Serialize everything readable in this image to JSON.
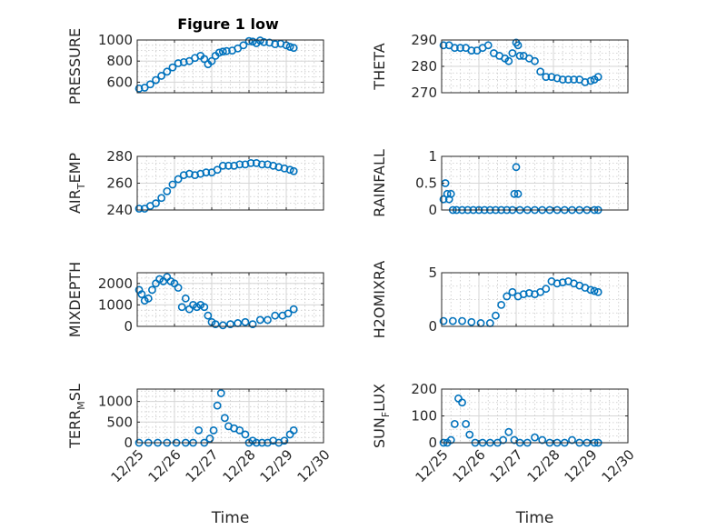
{
  "figure": {
    "title": "Figure 1 low"
  },
  "chart_data": [
    {
      "id": "pressure",
      "type": "scatter",
      "title": "Figure 1 low",
      "ylabel": "PRESSURE",
      "ylim": [
        500,
        1000
      ],
      "yticks": [
        600,
        800,
        1000
      ],
      "xlim": [
        0,
        5
      ],
      "xticklabels": [],
      "xlabel": "",
      "x": [
        0.05,
        0.2,
        0.35,
        0.5,
        0.65,
        0.8,
        0.95,
        1.1,
        1.25,
        1.4,
        1.55,
        1.7,
        1.8,
        1.9,
        2.0,
        2.1,
        2.2,
        2.3,
        2.4,
        2.55,
        2.7,
        2.85,
        3.0,
        3.1,
        3.2,
        3.3,
        3.4,
        3.55,
        3.7,
        3.85,
        4.0,
        4.1,
        4.2
      ],
      "y": [
        540,
        548,
        580,
        620,
        660,
        700,
        740,
        780,
        790,
        800,
        830,
        850,
        820,
        770,
        800,
        850,
        880,
        890,
        895,
        900,
        920,
        950,
        990,
        985,
        970,
        995,
        980,
        975,
        960,
        965,
        950,
        935,
        925
      ]
    },
    {
      "id": "theta",
      "type": "scatter",
      "ylabel": "THETA",
      "ylim": [
        270,
        290
      ],
      "yticks": [
        270,
        280,
        290
      ],
      "xlim": [
        0,
        5
      ],
      "xticklabels": [],
      "xlabel": "",
      "x": [
        0.05,
        0.2,
        0.35,
        0.5,
        0.65,
        0.8,
        0.95,
        1.1,
        1.25,
        1.4,
        1.55,
        1.7,
        1.8,
        1.9,
        2.0,
        2.05,
        2.1,
        2.2,
        2.35,
        2.5,
        2.65,
        2.8,
        2.95,
        3.1,
        3.25,
        3.4,
        3.55,
        3.7,
        3.85,
        4.0,
        4.1,
        4.2
      ],
      "y": [
        288,
        288,
        287,
        287,
        287,
        286,
        286,
        287,
        288,
        285,
        284,
        283,
        282,
        285,
        289,
        288,
        284,
        284,
        283,
        282,
        278,
        276,
        276,
        275.5,
        275,
        275,
        275,
        275,
        274,
        274.5,
        275,
        276
      ]
    },
    {
      "id": "air_temp",
      "type": "scatter",
      "ylabel": "AIR_TEMP",
      "ylim": [
        240,
        280
      ],
      "yticks": [
        240,
        260,
        280
      ],
      "xlim": [
        0,
        5
      ],
      "xticklabels": [],
      "xlabel": "",
      "x": [
        0.05,
        0.2,
        0.35,
        0.5,
        0.65,
        0.8,
        0.95,
        1.1,
        1.25,
        1.4,
        1.55,
        1.7,
        1.85,
        2.0,
        2.15,
        2.3,
        2.45,
        2.6,
        2.75,
        2.9,
        3.05,
        3.2,
        3.35,
        3.5,
        3.65,
        3.8,
        3.95,
        4.1,
        4.2
      ],
      "y": [
        241,
        241,
        243,
        245,
        249,
        254,
        259,
        263,
        266,
        267,
        266,
        267,
        268,
        268,
        270,
        273,
        273,
        273,
        274,
        274,
        275,
        275,
        274,
        274,
        273,
        272,
        271,
        270,
        269
      ]
    },
    {
      "id": "rainfall",
      "type": "scatter",
      "ylabel": "RAINFALL",
      "ylim": [
        0,
        1
      ],
      "yticks": [
        0,
        0.5,
        1
      ],
      "xlim": [
        0,
        5
      ],
      "xticklabels": [],
      "xlabel": "",
      "x": [
        0.05,
        0.1,
        0.15,
        0.2,
        0.25,
        0.3,
        0.4,
        0.55,
        0.7,
        0.85,
        1.0,
        1.15,
        1.3,
        1.45,
        1.6,
        1.75,
        1.9,
        1.95,
        2.0,
        2.05,
        2.1,
        2.3,
        2.5,
        2.7,
        2.9,
        3.1,
        3.3,
        3.5,
        3.7,
        3.9,
        4.1,
        4.2
      ],
      "y": [
        0.2,
        0.5,
        0.3,
        0.2,
        0.3,
        0,
        0,
        0,
        0,
        0,
        0,
        0,
        0,
        0,
        0,
        0,
        0,
        0.3,
        0.8,
        0.3,
        0,
        0,
        0,
        0,
        0,
        0,
        0,
        0,
        0,
        0,
        0,
        0
      ]
    },
    {
      "id": "mixdepth",
      "type": "scatter",
      "ylabel": "MIXDEPTH",
      "ylim": [
        0,
        2500
      ],
      "yticks": [
        0,
        1000,
        2000
      ],
      "xlim": [
        0,
        5
      ],
      "xticklabels": [],
      "xlabel": "",
      "x": [
        0.05,
        0.12,
        0.2,
        0.3,
        0.4,
        0.5,
        0.6,
        0.7,
        0.8,
        0.9,
        1.0,
        1.1,
        1.2,
        1.3,
        1.4,
        1.5,
        1.6,
        1.7,
        1.8,
        1.9,
        2.0,
        2.1,
        2.3,
        2.5,
        2.7,
        2.9,
        3.1,
        3.3,
        3.5,
        3.7,
        3.9,
        4.05,
        4.2
      ],
      "y": [
        1700,
        1500,
        1200,
        1300,
        1700,
        2000,
        2200,
        2100,
        2300,
        2100,
        2000,
        1800,
        900,
        1300,
        800,
        1000,
        900,
        1000,
        900,
        500,
        200,
        100,
        50,
        100,
        150,
        200,
        100,
        300,
        300,
        500,
        500,
        600,
        800
      ]
    },
    {
      "id": "h2omixra",
      "type": "scatter",
      "ylabel": "H2OMIXRA",
      "ylim": [
        0,
        5
      ],
      "yticks": [
        0,
        5
      ],
      "xlim": [
        0,
        5
      ],
      "xticklabels": [],
      "xlabel": "",
      "x": [
        0.05,
        0.3,
        0.55,
        0.8,
        1.05,
        1.3,
        1.45,
        1.6,
        1.75,
        1.9,
        2.05,
        2.2,
        2.35,
        2.5,
        2.65,
        2.8,
        2.95,
        3.1,
        3.25,
        3.4,
        3.55,
        3.7,
        3.85,
        4.0,
        4.1,
        4.2
      ],
      "y": [
        0.5,
        0.5,
        0.5,
        0.4,
        0.3,
        0.3,
        1,
        2,
        2.8,
        3.2,
        2.8,
        3.0,
        3.1,
        3.0,
        3.2,
        3.5,
        4.2,
        4.0,
        4.1,
        4.2,
        4.0,
        3.8,
        3.6,
        3.4,
        3.3,
        3.2
      ]
    },
    {
      "id": "terr_msl",
      "type": "scatter",
      "ylabel": "TERR_MSL",
      "ylim": [
        0,
        1300
      ],
      "yticks": [
        0,
        500,
        1000
      ],
      "xlim": [
        0,
        5
      ],
      "xticklabels": [
        "12/25",
        "12/26",
        "12/27",
        "12/28",
        "12/29",
        "12/30"
      ],
      "xlabel": "Time",
      "x": [
        0.05,
        0.3,
        0.55,
        0.8,
        1.05,
        1.3,
        1.5,
        1.65,
        1.8,
        1.95,
        2.05,
        2.15,
        2.25,
        2.35,
        2.45,
        2.6,
        2.75,
        2.9,
        3.0,
        3.1,
        3.2,
        3.35,
        3.5,
        3.65,
        3.8,
        3.95,
        4.1,
        4.2
      ],
      "y": [
        0,
        0,
        0,
        0,
        0,
        0,
        0,
        300,
        0,
        100,
        300,
        900,
        1200,
        600,
        400,
        350,
        300,
        200,
        0,
        50,
        0,
        0,
        0,
        50,
        0,
        50,
        200,
        300
      ]
    },
    {
      "id": "sun_flux",
      "type": "scatter",
      "ylabel": "SUN_FLUX",
      "ylim": [
        0,
        200
      ],
      "yticks": [
        0,
        100,
        200
      ],
      "xlim": [
        0,
        5
      ],
      "xticklabels": [
        "12/25",
        "12/26",
        "12/27",
        "12/28",
        "12/29",
        "12/30"
      ],
      "xlabel": "Time",
      "x": [
        0.05,
        0.15,
        0.25,
        0.35,
        0.45,
        0.55,
        0.65,
        0.75,
        0.9,
        1.1,
        1.3,
        1.5,
        1.65,
        1.8,
        1.95,
        2.1,
        2.3,
        2.5,
        2.7,
        2.9,
        3.1,
        3.3,
        3.5,
        3.7,
        3.9,
        4.1,
        4.2
      ],
      "y": [
        0,
        0,
        10,
        70,
        165,
        150,
        70,
        30,
        0,
        0,
        0,
        0,
        10,
        40,
        10,
        0,
        0,
        20,
        10,
        0,
        0,
        0,
        10,
        0,
        0,
        0,
        0
      ]
    }
  ]
}
